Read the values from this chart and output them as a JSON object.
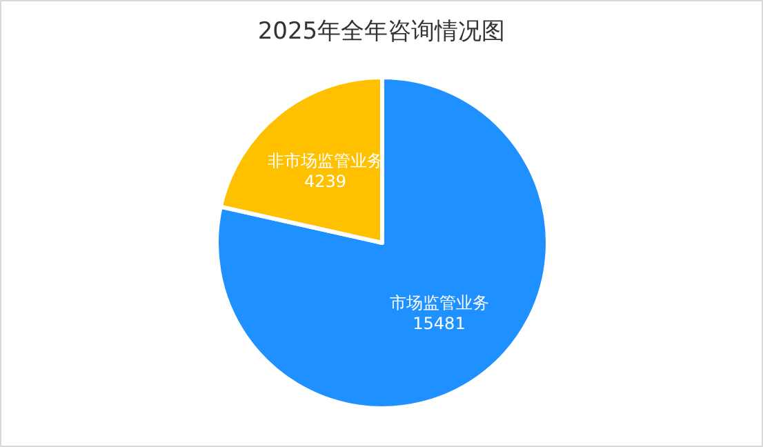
{
  "chart_data": {
    "type": "pie",
    "title": "2025年全年咨询情况图",
    "categories": [
      "市场监管业务",
      "非市场监管业务"
    ],
    "values": [
      15481,
      4239
    ],
    "colors": [
      "#1e90ff",
      "#ffc000"
    ],
    "data_labels": true,
    "legend": false
  }
}
